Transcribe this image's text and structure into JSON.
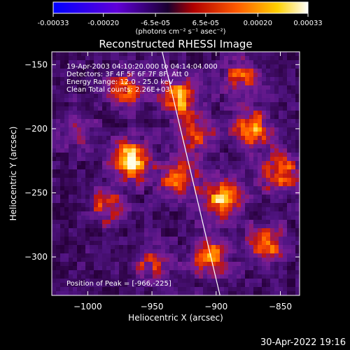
{
  "colorbar": {
    "tick_labels": [
      "-0.00033",
      "-0.00020",
      "-6.5e-05",
      "6.5e-05",
      "0.00020",
      "0.00033"
    ],
    "tick_values": [
      -0.00033,
      -0.0002,
      -6.5e-05,
      6.5e-05,
      0.0002,
      0.00033
    ],
    "range": [
      -0.00033,
      0.00033
    ],
    "units": "(photons cm⁻² s⁻¹ asec⁻²)",
    "colors": [
      "#0000ff",
      "#5a00d0",
      "#2a0040",
      "#d01000",
      "#ff7a00",
      "#ffd200",
      "#ffffff"
    ]
  },
  "chart_data": {
    "type": "heatmap",
    "title": "Reconstructed RHESSI Image",
    "xlabel": "Heliocentric X (arcsec)",
    "ylabel": "Heliocentric Y (arcsec)",
    "xlim": [
      -1028,
      -835
    ],
    "ylim": [
      -330,
      -140
    ],
    "x_ticks": [
      -1000,
      -950,
      -900,
      -850
    ],
    "y_ticks": [
      -150,
      -200,
      -250,
      -300
    ],
    "x_tick_labels": [
      "−1000",
      "−950",
      "−900",
      "−850"
    ],
    "y_tick_labels": [
      "−150",
      "−200",
      "−250",
      "−300"
    ],
    "limb_line": {
      "x": [
        -942,
        -897
      ],
      "y": [
        -140,
        -330
      ]
    },
    "hot_spots": [
      {
        "x": -966,
        "y": -225,
        "intensity": 1.0
      },
      {
        "x": -928,
        "y": -175,
        "intensity": 0.85
      },
      {
        "x": -895,
        "y": -255,
        "intensity": 0.9
      },
      {
        "x": -872,
        "y": -200,
        "intensity": 0.8
      },
      {
        "x": -905,
        "y": -300,
        "intensity": 0.75
      },
      {
        "x": -970,
        "y": -170,
        "intensity": 0.65
      },
      {
        "x": -930,
        "y": -240,
        "intensity": 0.7
      },
      {
        "x": -860,
        "y": -290,
        "intensity": 0.7
      },
      {
        "x": -985,
        "y": -260,
        "intensity": 0.55
      },
      {
        "x": -950,
        "y": -305,
        "intensity": 0.5
      },
      {
        "x": -880,
        "y": -160,
        "intensity": 0.6
      },
      {
        "x": -1010,
        "y": -200,
        "intensity": 0.45
      },
      {
        "x": -915,
        "y": -205,
        "intensity": 0.6
      },
      {
        "x": -850,
        "y": -235,
        "intensity": 0.75
      }
    ],
    "annotations": [
      "19-Apr-2003 04:10:20.000 to 04:14:04.000",
      "Detectors: 3F 4F 5F 6F 7F 8F, Att 0",
      "Energy Range: 12.0 - 25.0 keV",
      "Clean    Total counts: 2.26E+03"
    ],
    "peak_label": "Position of Peak = [-966,-225]"
  },
  "timestamp": "30-Apr-2022 19:16"
}
